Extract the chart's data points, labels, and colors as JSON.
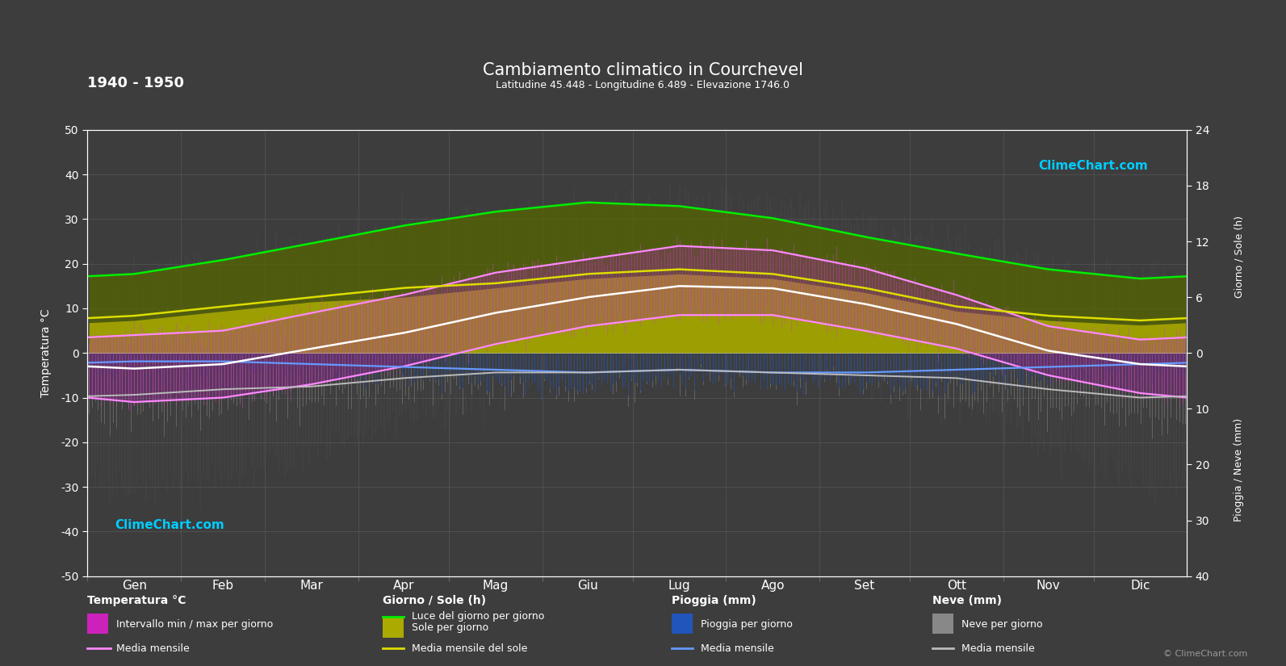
{
  "title": "Cambiamento climatico in Courchevel",
  "subtitle": "Latitudine 45.448 - Longitudine 6.489 - Elevazione 1746.0",
  "period": "1940 - 1950",
  "bg_color": "#3d3d3d",
  "months": [
    "Gen",
    "Feb",
    "Mar",
    "Apr",
    "Mag",
    "Giu",
    "Lug",
    "Ago",
    "Set",
    "Ott",
    "Nov",
    "Dic"
  ],
  "days_per_month": [
    31,
    28,
    31,
    30,
    31,
    30,
    31,
    31,
    30,
    31,
    30,
    31
  ],
  "temp_ylim": [
    -50,
    50
  ],
  "temp_yticks": [
    -50,
    -40,
    -30,
    -20,
    -10,
    0,
    10,
    20,
    30,
    40,
    50
  ],
  "sun_yticks": [
    0,
    6,
    12,
    18,
    24
  ],
  "rain_yticks": [
    0,
    10,
    20,
    30,
    40
  ],
  "sun_scale_max": 24,
  "rain_scale_max": 40,
  "temp_half": 50,
  "temp_mean": [
    -3.5,
    -2.5,
    1.0,
    4.5,
    9.0,
    12.5,
    15.0,
    14.5,
    11.0,
    6.5,
    0.5,
    -2.5
  ],
  "temp_min_mean": [
    -11,
    -10,
    -7,
    -3,
    2,
    6,
    8.5,
    8.5,
    5,
    1,
    -5,
    -9
  ],
  "temp_max_mean": [
    4,
    5,
    9,
    13,
    18,
    21,
    24,
    23,
    19,
    13,
    6,
    3
  ],
  "temp_abs_min": [
    -30,
    -28,
    -22,
    -15,
    -8,
    -3,
    -1,
    -1,
    -6,
    -12,
    -20,
    -28
  ],
  "temp_abs_max": [
    18,
    20,
    24,
    28,
    32,
    33,
    34,
    34,
    30,
    25,
    19,
    17
  ],
  "daylight": [
    8.5,
    10.0,
    11.8,
    13.7,
    15.2,
    16.2,
    15.8,
    14.5,
    12.5,
    10.7,
    9.0,
    8.0
  ],
  "sunshine_daily": [
    3.5,
    4.5,
    5.5,
    6.0,
    7.0,
    8.0,
    8.5,
    8.0,
    6.5,
    4.5,
    3.5,
    3.0
  ],
  "sunshine_mean": [
    4.0,
    5.0,
    6.0,
    7.0,
    7.5,
    8.5,
    9.0,
    8.5,
    7.0,
    5.0,
    4.0,
    3.5
  ],
  "rain_daily": [
    2.5,
    2.0,
    3.0,
    4.0,
    5.0,
    5.5,
    4.5,
    5.0,
    5.5,
    5.0,
    4.0,
    3.0
  ],
  "rain_mean": [
    1.5,
    1.5,
    2.0,
    2.5,
    3.0,
    3.5,
    3.0,
    3.5,
    3.5,
    3.0,
    2.5,
    2.0
  ],
  "snow_daily": [
    8,
    7,
    5,
    3,
    0.5,
    0,
    0,
    0,
    0,
    2,
    5,
    8
  ],
  "snow_mean": [
    6,
    5,
    4,
    2,
    0.5,
    0,
    0,
    0,
    0.5,
    1.5,
    4,
    6
  ],
  "col_bg": "#3d3d3d",
  "col_grid": "#666666",
  "col_temp_bar": "#664466",
  "col_temp_fill": "#993399",
  "col_temp_line": "#ff88ff",
  "col_white_line": "#ffffff",
  "col_daylight": "#556600",
  "col_sunshine": "#999900",
  "col_sun_fill": "#aaaa00",
  "col_sun_line": "#dddd00",
  "col_green_line": "#00ee00",
  "col_rain": "#2255bb",
  "col_rain_mean": "#6699ff",
  "col_snow": "#888888",
  "col_snow_mean": "#bbbbbb",
  "col_cyan": "#00ccff"
}
